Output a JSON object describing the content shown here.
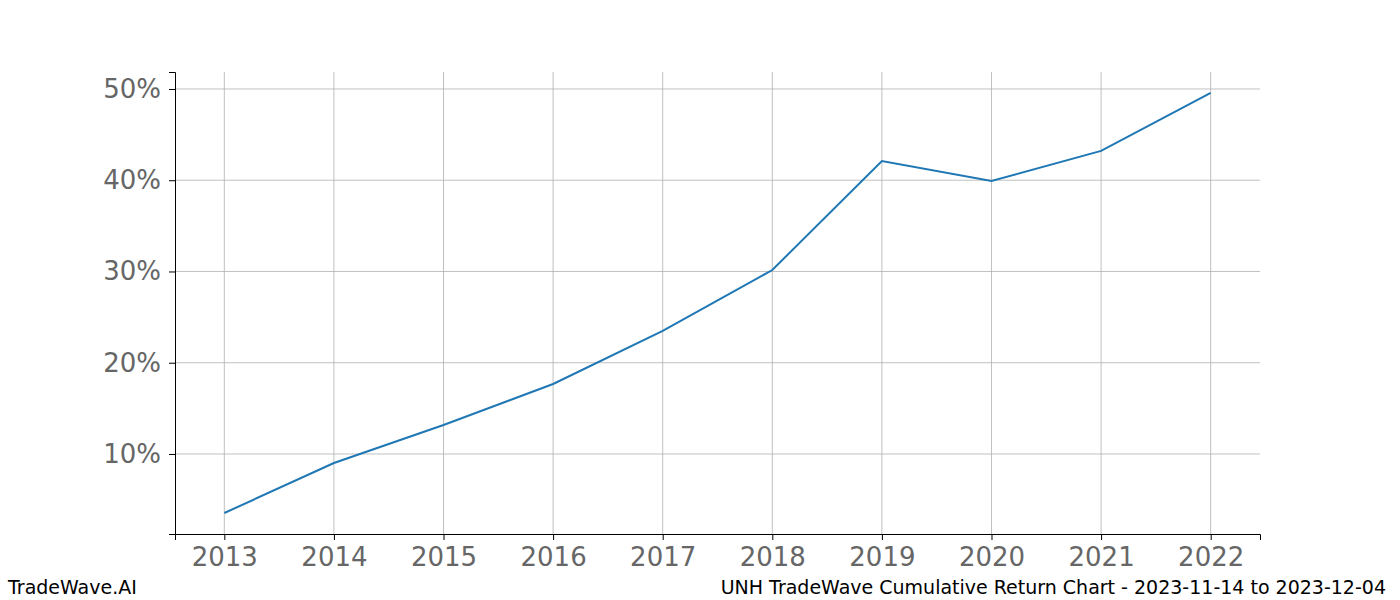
{
  "chart_data": {
    "type": "line",
    "title": "UNH TradeWave Cumulative Return Chart - 2023-11-14 to 2023-12-04",
    "annotations": [
      "TradeWave.AI"
    ],
    "x": [
      2013,
      2014,
      2015,
      2016,
      2017,
      2018,
      2019,
      2020,
      2021,
      2022
    ],
    "values": [
      3.53,
      9.01,
      13.18,
      17.67,
      23.48,
      30.16,
      42.11,
      39.92,
      43.21,
      49.56
    ],
    "color": "#1f77b4",
    "xlim": [
      2012.55,
      2022.45
    ],
    "xticks": [
      2013,
      2014,
      2015,
      2016,
      2017,
      2018,
      2019,
      2020,
      2021,
      2022
    ],
    "ylim": [
      1.23,
      51.86
    ],
    "yticks": [
      {
        "value": 10,
        "label": "10%"
      },
      {
        "value": 20,
        "label": "20%"
      },
      {
        "value": 30,
        "label": "30%"
      },
      {
        "value": 40,
        "label": "40%"
      },
      {
        "value": 50,
        "label": "50%"
      }
    ],
    "grid": true
  }
}
